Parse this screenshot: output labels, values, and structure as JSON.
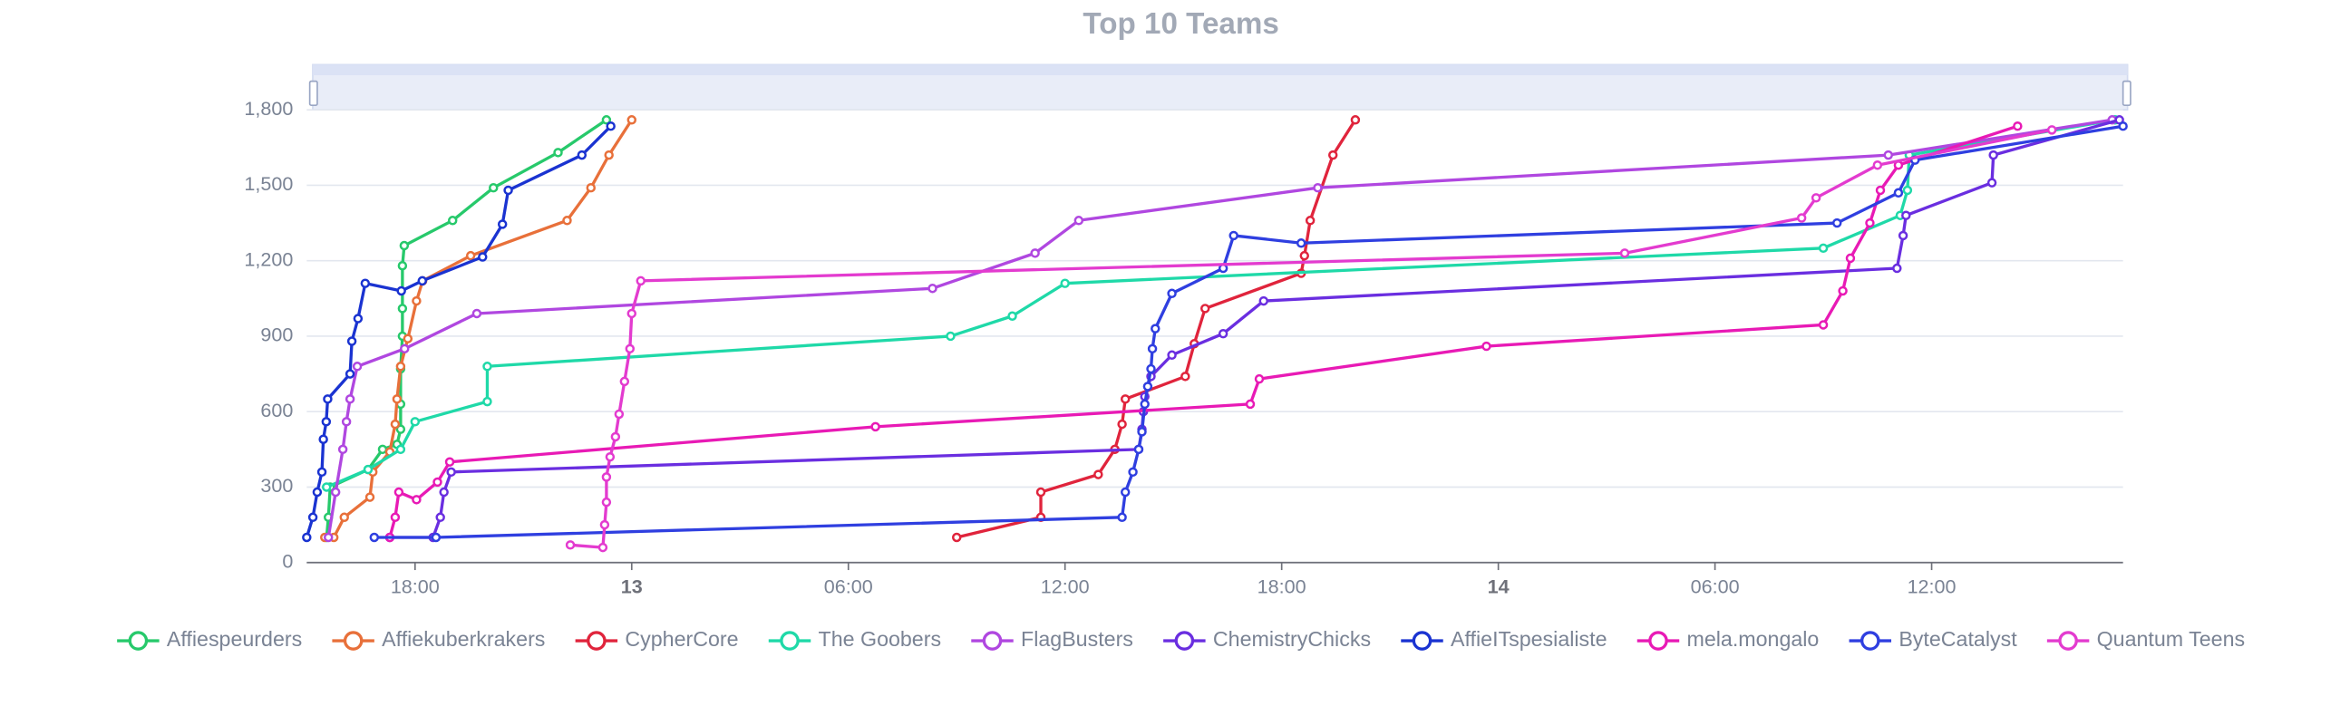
{
  "chart_data": {
    "type": "line",
    "title": "Top 10 Teams",
    "xlim": [
      -9.0,
      41.3
    ],
    "xticks": [
      {
        "value": -6,
        "label": "18:00"
      },
      {
        "value": 0,
        "label": "13"
      },
      {
        "value": 6,
        "label": "06:00"
      },
      {
        "value": 12,
        "label": "12:00"
      },
      {
        "value": 18,
        "label": "18:00"
      },
      {
        "value": 24,
        "label": "14"
      },
      {
        "value": 30,
        "label": "06:00"
      },
      {
        "value": 36,
        "label": "12:00"
      }
    ],
    "ylim": [
      0,
      1800
    ],
    "yticks": [
      0,
      {
        "value": 300,
        "label": "300"
      },
      {
        "value": 600,
        "label": "600"
      },
      {
        "value": 900,
        "label": "900"
      },
      {
        "value": 1200,
        "label": "1,200"
      },
      {
        "value": 1500,
        "label": "1,500"
      },
      {
        "value": 1800,
        "label": "1,800"
      }
    ],
    "grid": true,
    "legend": "bottom",
    "series": [
      {
        "name": "Affiespeurders",
        "color": "#27c96b",
        "x": [
          -8.45,
          -8.4,
          -8.35,
          -7.3,
          -6.9,
          -6.5,
          -6.4,
          -6.4,
          -6.4,
          -6.35,
          -6.35,
          -6.35,
          -6.3,
          -4.96,
          -3.83,
          -2.04,
          -0.7
        ],
        "values": [
          100,
          180,
          300,
          370,
          450,
          470,
          530,
          630,
          770,
          900,
          1010,
          1180,
          1260,
          1360,
          1490,
          1630,
          1760
        ]
      },
      {
        "name": "Affiekuberkrakers",
        "color": "#e8703a",
        "x": [
          -8.5,
          -8.25,
          -7.96,
          -7.25,
          -7.17,
          -6.7,
          -6.55,
          -6.5,
          -6.4,
          -6.2,
          -5.96,
          -5.79,
          -4.46,
          -1.79,
          -1.13,
          -0.63,
          0.0
        ],
        "values": [
          100,
          100,
          180,
          260,
          360,
          440,
          550,
          650,
          780,
          890,
          1040,
          1120,
          1220,
          1360,
          1490,
          1620,
          1760
        ]
      },
      {
        "name": "CypherCore",
        "color": "#e0243c",
        "x": [
          9.0,
          11.33,
          11.33,
          12.92,
          13.38,
          13.58,
          13.67,
          15.33,
          15.58,
          15.88,
          18.54,
          18.63,
          18.79,
          19.42,
          20.04
        ],
        "values": [
          100,
          180,
          280,
          350,
          450,
          550,
          650,
          740,
          870,
          1010,
          1150,
          1220,
          1360,
          1620,
          1760
        ]
      },
      {
        "name": "The Goobers",
        "color": "#1fd9a8",
        "x": [
          -8.45,
          -7.3,
          -6.4,
          -6.0,
          -4.0,
          -4.0,
          8.83,
          10.54,
          12.0,
          33.0,
          35.13,
          35.33,
          35.38,
          41.08
        ],
        "values": [
          300,
          370,
          450,
          560,
          640,
          780,
          900,
          980,
          1110,
          1250,
          1380,
          1480,
          1620,
          1760
        ]
      },
      {
        "name": "FlagBusters",
        "color": "#b047e0",
        "x": [
          -8.4,
          -8.2,
          -8.0,
          -7.9,
          -7.8,
          -7.6,
          -6.29,
          -4.29,
          8.33,
          11.17,
          12.38,
          19.0,
          34.8,
          41.0
        ],
        "values": [
          100,
          280,
          450,
          560,
          650,
          780,
          850,
          990,
          1090,
          1230,
          1360,
          1490,
          1620,
          1760
        ]
      },
      {
        "name": "ChemistryChicks",
        "color": "#6a2ee0",
        "x": [
          -6.7,
          -5.5,
          -5.3,
          -5.2,
          -5.0,
          14.04,
          14.13,
          14.17,
          14.21,
          14.38,
          14.96,
          16.38,
          17.5,
          35.04,
          35.21,
          35.29,
          37.67,
          37.71,
          41.2
        ],
        "values": [
          100,
          100,
          180,
          280,
          360,
          450,
          530,
          600,
          660,
          740,
          825,
          910,
          1040,
          1170,
          1300,
          1380,
          1510,
          1620,
          1760
        ]
      },
      {
        "name": "AffieITspesialiste",
        "color": "#1a33d1",
        "x": [
          -9.0,
          -8.83,
          -8.71,
          -8.58,
          -8.54,
          -8.46,
          -8.42,
          -7.8,
          -7.75,
          -7.58,
          -7.38,
          -6.38,
          -5.8,
          -4.13,
          -3.58,
          -3.42,
          -1.38,
          -0.58
        ],
        "values": [
          100,
          180,
          280,
          360,
          490,
          560,
          650,
          750,
          880,
          970,
          1110,
          1080,
          1120,
          1215,
          1345,
          1480,
          1620,
          1735
        ]
      },
      {
        "name": "mela.mongalo",
        "color": "#e81ab5",
        "x": [
          -6.7,
          -6.55,
          -6.45,
          -5.96,
          -5.38,
          -5.04,
          6.75,
          17.13,
          17.38,
          23.67,
          33.0,
          33.54,
          33.75,
          34.29,
          34.58,
          35.08,
          38.38
        ],
        "values": [
          100,
          180,
          280,
          250,
          320,
          400,
          540,
          630,
          730,
          860,
          945,
          1080,
          1210,
          1350,
          1480,
          1580,
          1735
        ]
      },
      {
        "name": "ByteCatalyst",
        "color": "#2f3fe0",
        "x": [
          -7.13,
          -5.42,
          13.58,
          13.67,
          13.88,
          14.04,
          14.13,
          14.21,
          14.29,
          14.38,
          14.42,
          14.5,
          14.96,
          16.38,
          16.67,
          18.54,
          33.38,
          35.08,
          35.54,
          41.3
        ],
        "values": [
          100,
          100,
          180,
          280,
          360,
          450,
          520,
          630,
          700,
          770,
          850,
          930,
          1070,
          1170,
          1300,
          1270,
          1350,
          1470,
          1600,
          1735
        ]
      },
      {
        "name": "Quantum Teens",
        "color": "#e33bcf",
        "x": [
          -1.7,
          -0.8,
          -0.75,
          -0.7,
          -0.7,
          -0.6,
          -0.45,
          -0.35,
          -0.2,
          -0.05,
          0.0,
          0.25,
          27.5,
          32.4,
          32.8,
          34.5,
          39.33
        ],
        "values": [
          70,
          60,
          150,
          240,
          340,
          420,
          500,
          590,
          720,
          850,
          990,
          1120,
          1230,
          1370,
          1450,
          1580,
          1720
        ]
      }
    ]
  }
}
